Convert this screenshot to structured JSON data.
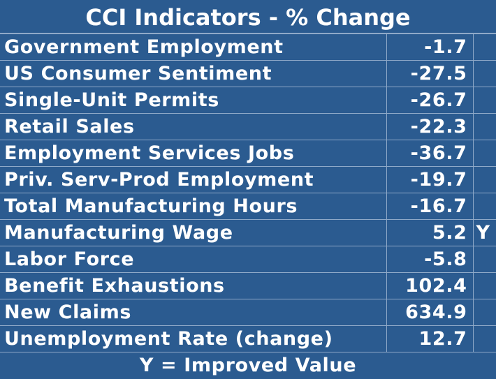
{
  "title": "CCI Indicators - % Change",
  "table": {
    "rows": [
      {
        "label": "Government Employment",
        "value": -1.7
      },
      {
        "label": "US Consumer Sentiment",
        "value": -27.5
      },
      {
        "label": "Single-Unit Permits",
        "value": -26.7
      },
      {
        "label": "Retail Sales",
        "value": -22.3
      },
      {
        "label": "Employment Services Jobs",
        "value": -36.7
      },
      {
        "label": "Priv. Serv-Prod Employment",
        "value": -19.7
      },
      {
        "label": "Total Manufacturing Hours",
        "value": -16.7
      },
      {
        "label": "Manufacturing Wage",
        "value": 5.2,
        "flag": "Y"
      },
      {
        "label": "Labor Force",
        "value": -5.8
      },
      {
        "label": "Benefit Exhaustions",
        "value": 102.4
      },
      {
        "label": "New Claims",
        "value": 634.9
      },
      {
        "label": "Unemployment Rate (change)",
        "value": 12.7
      }
    ]
  },
  "footer": "Y = Improved Value"
}
